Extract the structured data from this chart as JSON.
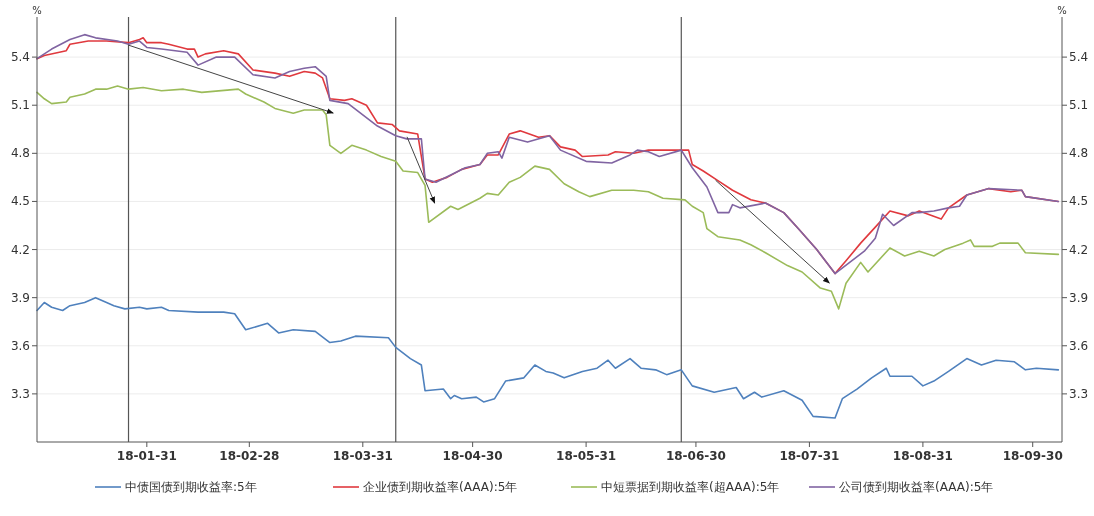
{
  "chart_data": {
    "type": "line",
    "ylabel": "%",
    "y2label": "%",
    "xlim": [
      "--01-01",
      "--10-08"
    ],
    "xticks": [
      {
        "value": "--01-31",
        "label": "18-01-31"
      },
      {
        "value": "--02-28",
        "label": "18-02-28"
      },
      {
        "value": "--03-31",
        "label": "18-03-31"
      },
      {
        "value": "--04-30",
        "label": "18-04-30"
      },
      {
        "value": "--05-31",
        "label": "18-05-31"
      },
      {
        "value": "--06-30",
        "label": "18-06-30"
      },
      {
        "value": "--07-31",
        "label": "18-07-31"
      },
      {
        "value": "--08-31",
        "label": "18-08-31"
      },
      {
        "value": "--09-30",
        "label": "18-09-30"
      }
    ],
    "ylim": [
      3.0,
      5.65
    ],
    "yticks": [
      3.3,
      3.6,
      3.9,
      4.2,
      4.5,
      4.8,
      5.1,
      5.4
    ],
    "y2lim": [
      3.0,
      5.65
    ],
    "y2ticks": [
      3.3,
      3.6,
      3.9,
      4.2,
      4.5,
      4.8,
      5.1,
      5.4
    ],
    "grid": "y",
    "legend": "bottom",
    "line_style": "solid",
    "ref_lines": [
      {
        "axis": "x",
        "value": "--01-26",
        "color": "#555555"
      },
      {
        "axis": "x",
        "value": "--04-09",
        "color": "#555555"
      },
      {
        "axis": "x",
        "value": "--06-26",
        "color": "#555555"
      }
    ],
    "series": [
      {
        "name": "中债国债到期收益率:5年",
        "color": "#4f81bd",
        "x": [
          "--01-01",
          "--01-03",
          "--01-05",
          "--01-08",
          "--01-10",
          "--01-14",
          "--01-17",
          "--01-20",
          "--01-22",
          "--01-25",
          "--01-29",
          "--01-31",
          "--02-04",
          "--02-06",
          "--02-14",
          "--02-21",
          "--02-24",
          "--02-27",
          "--03-05",
          "--03-08",
          "--03-12",
          "--03-18",
          "--03-22",
          "--03-25",
          "--03-29",
          "--04-07",
          "--04-09",
          "--04-13",
          "--04-16",
          "--04-17",
          "--04-22",
          "--04-24",
          "--04-25",
          "--04-27",
          "--05-01",
          "--05-03",
          "--05-06",
          "--05-09",
          "--05-14",
          "--05-17",
          "--05-20",
          "--05-22",
          "--05-25",
          "--05-30",
          "--06-03",
          "--06-06",
          "--06-08",
          "--06-12",
          "--06-15",
          "--06-19",
          "--06-22",
          "--06-26",
          "--06-29",
          "--07-05",
          "--07-11",
          "--07-13",
          "--07-16",
          "--07-18",
          "--07-24",
          "--07-29",
          "--08-01",
          "--08-07",
          "--08-09",
          "--08-13",
          "--08-17",
          "--08-21",
          "--08-22",
          "--08-28",
          "--08-31",
          "--09-03",
          "--09-07",
          "--09-12",
          "--09-16",
          "--09-20",
          "--09-25",
          "--09-28",
          "--10-01",
          "--10-07"
        ],
        "values": [
          3.82,
          3.87,
          3.84,
          3.82,
          3.85,
          3.87,
          3.9,
          3.87,
          3.85,
          3.83,
          3.84,
          3.83,
          3.84,
          3.82,
          3.81,
          3.81,
          3.8,
          3.7,
          3.74,
          3.68,
          3.7,
          3.69,
          3.62,
          3.63,
          3.66,
          3.65,
          3.59,
          3.52,
          3.48,
          3.32,
          3.33,
          3.27,
          3.29,
          3.27,
          3.28,
          3.25,
          3.27,
          3.38,
          3.4,
          3.48,
          3.44,
          3.43,
          3.4,
          3.44,
          3.46,
          3.51,
          3.46,
          3.52,
          3.46,
          3.45,
          3.42,
          3.45,
          3.35,
          3.31,
          3.34,
          3.27,
          3.31,
          3.28,
          3.32,
          3.26,
          3.16,
          3.15,
          3.27,
          3.33,
          3.4,
          3.46,
          3.41,
          3.41,
          3.35,
          3.38,
          3.44,
          3.52,
          3.48,
          3.51,
          3.5,
          3.45,
          3.46,
          3.45
        ]
      },
      {
        "name": "企业债到期收益率(AAA):5年",
        "color": "#e0393e",
        "x": [
          "--01-01",
          "--01-03",
          "--01-09",
          "--01-10",
          "--01-15",
          "--01-20",
          "--01-26",
          "--01-29",
          "--01-30",
          "--01-31",
          "--02-04",
          "--02-06",
          "--02-11",
          "--02-13",
          "--02-14",
          "--02-16",
          "--02-21",
          "--02-25",
          "--03-01",
          "--03-07",
          "--03-11",
          "--03-15",
          "--03-18",
          "--03-20",
          "--03-22",
          "--03-26",
          "--03-28",
          "--04-01",
          "--04-04",
          "--04-08",
          "--04-10",
          "--04-15",
          "--04-17",
          "--04-19",
          "--04-23",
          "--04-27",
          "--05-02",
          "--05-04",
          "--05-07",
          "--05-10",
          "--05-13",
          "--05-18",
          "--05-21",
          "--05-24",
          "--05-28",
          "--05-30",
          "--06-06",
          "--06-08",
          "--06-13",
          "--06-17",
          "--06-28",
          "--06-29",
          "--07-02",
          "--07-06",
          "--07-10",
          "--07-15",
          "--07-19",
          "--07-24",
          "--07-28",
          "--08-02",
          "--08-07",
          "--08-10",
          "--08-14",
          "--08-18",
          "--08-22",
          "--08-27",
          "--08-30",
          "--09-05",
          "--09-07",
          "--09-12",
          "--09-18",
          "--09-24",
          "--09-27",
          "--09-28",
          "--10-07"
        ],
        "values": [
          5.39,
          5.41,
          5.44,
          5.48,
          5.5,
          5.5,
          5.49,
          5.51,
          5.52,
          5.49,
          5.49,
          5.48,
          5.45,
          5.45,
          5.4,
          5.42,
          5.44,
          5.42,
          5.32,
          5.3,
          5.28,
          5.31,
          5.3,
          5.27,
          5.14,
          5.13,
          5.14,
          5.1,
          4.99,
          4.98,
          4.94,
          4.92,
          4.64,
          4.62,
          4.65,
          4.7,
          4.73,
          4.79,
          4.79,
          4.92,
          4.94,
          4.9,
          4.91,
          4.84,
          4.82,
          4.78,
          4.79,
          4.81,
          4.8,
          4.82,
          4.82,
          4.73,
          4.69,
          4.63,
          4.57,
          4.51,
          4.49,
          4.43,
          4.33,
          4.2,
          4.05,
          4.13,
          4.24,
          4.34,
          4.44,
          4.41,
          4.44,
          4.39,
          4.46,
          4.54,
          4.58,
          4.56,
          4.57,
          4.53,
          4.5
        ]
      },
      {
        "name": "中短票据到期收益率(超AAA):5年",
        "color": "#9bbb59",
        "x": [
          "--01-01",
          "--01-03",
          "--01-05",
          "--01-09",
          "--01-10",
          "--01-14",
          "--01-17",
          "--01-20",
          "--01-23",
          "--01-26",
          "--01-30",
          "--02-04",
          "--02-10",
          "--02-15",
          "--02-25",
          "--02-27",
          "--03-04",
          "--03-07",
          "--03-12",
          "--03-15",
          "--03-20",
          "--03-21",
          "--03-22",
          "--03-25",
          "--03-28",
          "--04-01",
          "--04-05",
          "--04-09",
          "--04-11",
          "--04-15",
          "--04-17",
          "--04-18",
          "--04-24",
          "--04-26",
          "--05-02",
          "--05-04",
          "--05-07",
          "--05-10",
          "--05-13",
          "--05-17",
          "--05-21",
          "--05-25",
          "--05-29",
          "--06-01",
          "--06-07",
          "--06-13",
          "--06-17",
          "--06-21",
          "--06-27",
          "--06-29",
          "--07-02",
          "--07-03",
          "--07-06",
          "--07-12",
          "--07-15",
          "--07-19",
          "--07-25",
          "--07-29",
          "--08-03",
          "--08-06",
          "--08-08",
          "--08-10",
          "--08-14",
          "--08-16",
          "--08-22",
          "--08-26",
          "--08-30",
          "--09-03",
          "--09-06",
          "--09-11",
          "--09-13",
          "--09-14",
          "--09-19",
          "--09-21",
          "--09-26",
          "--09-28",
          "--10-07"
        ],
        "values": [
          5.18,
          5.14,
          5.11,
          5.12,
          5.15,
          5.17,
          5.2,
          5.2,
          5.22,
          5.2,
          5.21,
          5.19,
          5.2,
          5.18,
          5.2,
          5.17,
          5.12,
          5.08,
          5.05,
          5.07,
          5.07,
          5.04,
          4.85,
          4.8,
          4.85,
          4.82,
          4.78,
          4.75,
          4.69,
          4.68,
          4.6,
          4.37,
          4.47,
          4.45,
          4.52,
          4.55,
          4.54,
          4.62,
          4.65,
          4.72,
          4.7,
          4.61,
          4.56,
          4.53,
          4.57,
          4.57,
          4.56,
          4.52,
          4.51,
          4.47,
          4.43,
          4.33,
          4.28,
          4.26,
          4.23,
          4.18,
          4.1,
          4.06,
          3.96,
          3.94,
          3.83,
          3.99,
          4.12,
          4.06,
          4.21,
          4.16,
          4.19,
          4.16,
          4.2,
          4.24,
          4.26,
          4.22,
          4.22,
          4.24,
          4.24,
          4.18,
          4.17
        ]
      },
      {
        "name": "公司债到期收益率(AAA):5年",
        "color": "#8064a2",
        "x": [
          "--01-01",
          "--01-05",
          "--01-10",
          "--01-14",
          "--01-17",
          "--01-23",
          "--01-26",
          "--01-29",
          "--01-31",
          "--02-04",
          "--02-11",
          "--02-14",
          "--02-19",
          "--02-24",
          "--03-01",
          "--03-07",
          "--03-11",
          "--03-15",
          "--03-18",
          "--03-21",
          "--03-22",
          "--03-27",
          "--04-04",
          "--04-09",
          "--04-12",
          "--04-16",
          "--04-17",
          "--04-20",
          "--04-28",
          "--05-02",
          "--05-04",
          "--05-07",
          "--05-08",
          "--05-10",
          "--05-15",
          "--05-21",
          "--05-24",
          "--05-31",
          "--06-07",
          "--06-12",
          "--06-14",
          "--06-17",
          "--06-20",
          "--06-26",
          "--06-29",
          "--07-03",
          "--07-06",
          "--07-09",
          "--07-10",
          "--07-12",
          "--07-19",
          "--07-24",
          "--07-28",
          "--08-02",
          "--08-07",
          "--08-11",
          "--08-15",
          "--08-18",
          "--08-20",
          "--08-23",
          "--08-28",
          "--08-30",
          "--09-03",
          "--09-07",
          "--09-10",
          "--09-12",
          "--09-18",
          "--09-27",
          "--09-28",
          "--10-07"
        ],
        "values": [
          5.39,
          5.45,
          5.51,
          5.54,
          5.52,
          5.5,
          5.48,
          5.5,
          5.46,
          5.45,
          5.43,
          5.35,
          5.4,
          5.4,
          5.29,
          5.27,
          5.31,
          5.33,
          5.34,
          5.28,
          5.13,
          5.11,
          4.97,
          4.91,
          4.89,
          4.89,
          4.64,
          4.62,
          4.71,
          4.73,
          4.8,
          4.81,
          4.77,
          4.9,
          4.87,
          4.91,
          4.82,
          4.75,
          4.74,
          4.79,
          4.82,
          4.81,
          4.78,
          4.82,
          4.71,
          4.59,
          4.43,
          4.43,
          4.48,
          4.46,
          4.49,
          4.43,
          4.33,
          4.2,
          4.05,
          4.12,
          4.19,
          4.27,
          4.42,
          4.35,
          4.43,
          4.43,
          4.44,
          4.46,
          4.47,
          4.54,
          4.58,
          4.57,
          4.53,
          4.5
        ]
      }
    ]
  }
}
